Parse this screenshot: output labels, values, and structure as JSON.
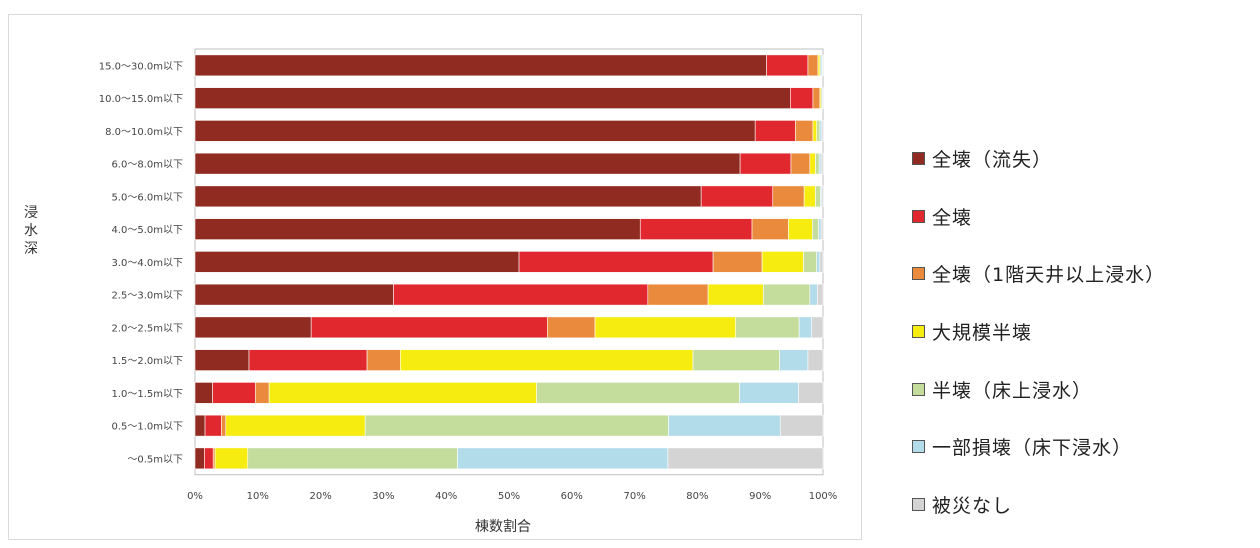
{
  "chart_data": {
    "type": "bar",
    "orientation": "horizontal",
    "stacked": true,
    "xlabel": "棟数割合",
    "ylabel": "浸水深",
    "xlim": [
      0,
      100
    ],
    "x_ticks": [
      "0%",
      "10%",
      "20%",
      "30%",
      "40%",
      "50%",
      "60%",
      "70%",
      "80%",
      "90%",
      "100%"
    ],
    "categories": [
      "15.0～30.0m以下",
      "10.0～15.0m以下",
      "8.0～10.0m以下",
      "6.0～8.0m以下",
      "5.0～6.0m以下",
      "4.0～5.0m以下",
      "3.0～4.0m以下",
      "2.5～3.0m以下",
      "2.0～2.5m以下",
      "1.5～2.0m以下",
      "1.0～1.5m以下",
      "0.5～1.0m以下",
      "～0.5m以下"
    ],
    "series": [
      {
        "name": "全壊（流失）",
        "color": "#8f2b20",
        "values": [
          91,
          94.8,
          89.2,
          86.8,
          80.6,
          70.9,
          51.6,
          31.6,
          18.5,
          8.6,
          2.8,
          1.6,
          1.5
        ]
      },
      {
        "name": "全壊",
        "color": "#e0282e",
        "values": [
          6.6,
          3.6,
          6.4,
          8.1,
          11.4,
          17.8,
          30.9,
          40.5,
          37.6,
          18.8,
          6.8,
          2.6,
          1.4
        ]
      },
      {
        "name": "全壊（1階天井以上浸水）",
        "color": "#ea8a3c",
        "values": [
          1.6,
          1.1,
          2.8,
          3.0,
          5.0,
          5.8,
          7.8,
          9.6,
          7.6,
          5.3,
          2.2,
          0.7,
          0.3
        ]
      },
      {
        "name": "大規模半壊",
        "color": "#f7ec10",
        "values": [
          0.3,
          0.2,
          0.6,
          0.9,
          1.8,
          3.8,
          6.6,
          8.8,
          22.4,
          46.6,
          42.6,
          22.2,
          5.2
        ]
      },
      {
        "name": "半壊（床上浸水）",
        "color": "#c4dc9c",
        "values": [
          0.2,
          0.2,
          0.5,
          0.6,
          0.8,
          1.0,
          2.1,
          7.4,
          10.1,
          13.8,
          32.3,
          48.3,
          33.4
        ]
      },
      {
        "name": "一部損壊（床下浸水）",
        "color": "#b2dcea",
        "values": [
          0.2,
          0.1,
          0.3,
          0.3,
          0.2,
          0.4,
          0.5,
          1.2,
          2.0,
          4.5,
          9.4,
          17.8,
          33.5
        ]
      },
      {
        "name": "被災なし",
        "color": "#d4d4d4",
        "values": [
          0.1,
          0,
          0.2,
          0.3,
          0.2,
          0.3,
          0.5,
          0.9,
          1.8,
          2.4,
          3.9,
          6.8,
          24.7
        ]
      }
    ]
  }
}
